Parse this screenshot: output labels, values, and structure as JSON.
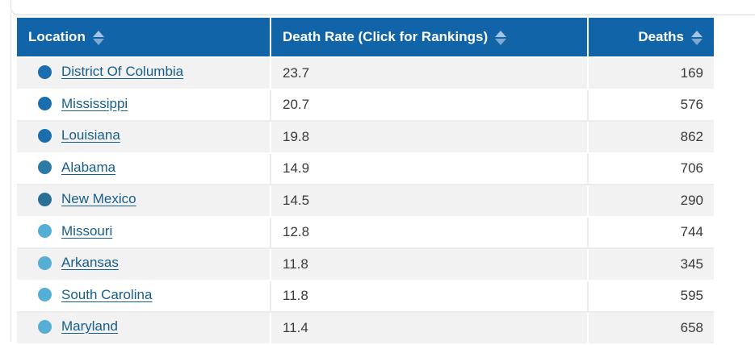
{
  "colors": {
    "header_bg": "#1164a7",
    "header_text": "#ffffff",
    "sort_arrow_up": "#a6c3e2",
    "sort_arrow_down": "#7ea9d2",
    "row_alt_bg": "#f2f2f2",
    "link": "#175d8a",
    "value_text": "#3a3a3a",
    "frame_border": "#dcdcdc",
    "dot_dark_blue": "#1b6eae",
    "dot_medium_blue": "#2d7aa6",
    "dot_teal_blue": "#2a7096",
    "dot_light_blue": "#55aed3"
  },
  "table": {
    "columns": [
      {
        "id": "location",
        "label": "Location",
        "sortable": true,
        "align": "left"
      },
      {
        "id": "death_rate",
        "label": "Death Rate (Click for Rankings)",
        "sortable": true,
        "align": "left"
      },
      {
        "id": "deaths",
        "label": "Deaths",
        "sortable": true,
        "align": "right"
      }
    ],
    "rows": [
      {
        "location": "District Of Columbia",
        "death_rate": "23.7",
        "deaths": "169",
        "dot_color": "#1b6eae"
      },
      {
        "location": "Mississippi",
        "death_rate": "20.7",
        "deaths": "576",
        "dot_color": "#1b6eae"
      },
      {
        "location": "Louisiana",
        "death_rate": "19.8",
        "deaths": "862",
        "dot_color": "#1b6eae"
      },
      {
        "location": "Alabama",
        "death_rate": "14.9",
        "deaths": "706",
        "dot_color": "#2d7aa6"
      },
      {
        "location": "New Mexico",
        "death_rate": "14.5",
        "deaths": "290",
        "dot_color": "#2a7096"
      },
      {
        "location": "Missouri",
        "death_rate": "12.8",
        "deaths": "744",
        "dot_color": "#55aed3"
      },
      {
        "location": "Arkansas",
        "death_rate": "11.8",
        "deaths": "345",
        "dot_color": "#55aed3"
      },
      {
        "location": "South Carolina",
        "death_rate": "11.8",
        "deaths": "595",
        "dot_color": "#55aed3"
      },
      {
        "location": "Maryland",
        "death_rate": "11.4",
        "deaths": "658",
        "dot_color": "#55aed3"
      }
    ]
  }
}
